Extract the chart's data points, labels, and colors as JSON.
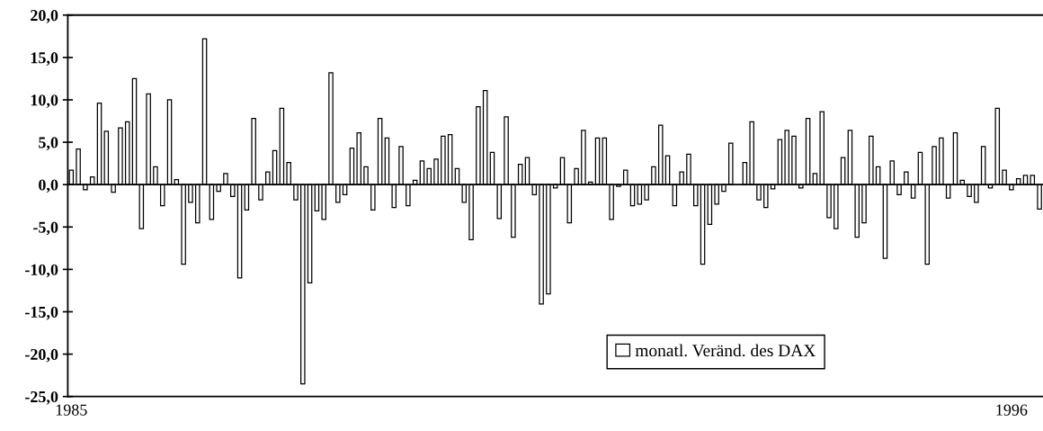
{
  "chart_data": {
    "type": "bar",
    "categories": [
      "1985",
      null,
      null,
      null,
      null,
      null,
      null,
      null,
      null,
      null,
      null,
      null,
      null,
      null,
      null,
      null,
      null,
      null,
      null,
      null,
      null,
      null,
      null,
      null,
      null,
      null,
      null,
      null,
      null,
      null,
      null,
      null,
      null,
      null,
      null,
      null,
      null,
      null,
      null,
      null,
      null,
      null,
      null,
      null,
      null,
      null,
      null,
      null,
      null,
      null,
      null,
      null,
      null,
      null,
      null,
      null,
      null,
      null,
      null,
      null,
      null,
      null,
      null,
      null,
      null,
      null,
      null,
      null,
      null,
      null,
      null,
      null,
      null,
      null,
      null,
      null,
      null,
      null,
      null,
      null,
      null,
      null,
      null,
      null,
      null,
      null,
      null,
      null,
      null,
      null,
      null,
      null,
      null,
      null,
      null,
      null,
      null,
      null,
      null,
      null,
      null,
      null,
      null,
      null,
      null,
      null,
      null,
      null,
      null,
      null,
      null,
      null,
      null,
      null,
      null,
      null,
      null,
      null,
      null,
      null,
      null,
      null,
      null,
      null,
      null,
      null,
      null,
      null,
      null,
      null,
      null,
      null,
      null,
      null,
      "1996",
      null,
      null,
      null,
      null
    ],
    "series": [
      {
        "name": "monatl. Veränd. des DAX",
        "color": "#ffffff",
        "values": [
          1.7,
          4.2,
          -0.6,
          0.9,
          9.6,
          6.3,
          -0.9,
          6.7,
          7.4,
          12.5,
          -5.2,
          10.7,
          2.1,
          -2.5,
          10.0,
          0.6,
          -9.4,
          -2.1,
          -4.5,
          17.2,
          -4.1,
          -0.8,
          1.3,
          -1.4,
          -11.0,
          -3.0,
          7.8,
          -1.8,
          1.5,
          4.0,
          9.0,
          2.6,
          -1.8,
          -23.5,
          -11.6,
          -3.1,
          -4.1,
          13.2,
          -2.1,
          -1.2,
          4.3,
          6.1,
          2.1,
          -3.0,
          7.8,
          5.5,
          -2.7,
          4.5,
          -2.5,
          0.5,
          2.8,
          1.9,
          3.0,
          5.7,
          5.9,
          1.9,
          -2.1,
          -6.5,
          9.2,
          11.1,
          3.8,
          -4.0,
          8.0,
          -6.2,
          2.4,
          3.2,
          -1.2,
          -14.1,
          -12.9,
          -0.4,
          3.2,
          -4.5,
          1.9,
          6.4,
          0.3,
          5.5,
          5.5,
          -4.1,
          -0.2,
          1.7,
          -2.5,
          -2.3,
          -1.8,
          2.1,
          7.0,
          3.4,
          -2.5,
          1.5,
          3.6,
          -2.5,
          -9.4,
          -4.7,
          -2.3,
          -0.8,
          4.9,
          null,
          2.6,
          7.4,
          -1.8,
          -2.7,
          -0.5,
          5.3,
          6.4,
          5.7,
          -0.4,
          7.8,
          1.3,
          8.6,
          -3.9,
          -5.2,
          3.2,
          6.4,
          -6.2,
          -4.5,
          5.7,
          2.1,
          -8.7,
          2.8,
          -1.2,
          1.5,
          -1.6,
          3.8,
          -9.4,
          4.5,
          5.5,
          -1.6,
          6.1,
          0.5,
          -1.4,
          -2.1,
          4.5,
          -0.4,
          9.0,
          1.7,
          -0.6,
          0.7,
          1.1,
          1.1,
          -2.9
        ]
      }
    ],
    "ylim": [
      -25,
      20
    ],
    "yticks": [
      {
        "value": -25,
        "label": "-25,0"
      },
      {
        "value": -20,
        "label": "-20,0"
      },
      {
        "value": -15,
        "label": "-15,0"
      },
      {
        "value": -10,
        "label": "-10,0"
      },
      {
        "value": -5,
        "label": "-5,0"
      },
      {
        "value": 0,
        "label": "0,0"
      },
      {
        "value": 5,
        "label": "5,0"
      },
      {
        "value": 10,
        "label": "10,0"
      },
      {
        "value": 15,
        "label": "15,0"
      },
      {
        "value": 20,
        "label": "20,0"
      }
    ],
    "ref_lines": [
      {
        "axis": "y",
        "value": 0,
        "color": "#000000"
      }
    ],
    "grid": false,
    "legend": "bottom right"
  }
}
